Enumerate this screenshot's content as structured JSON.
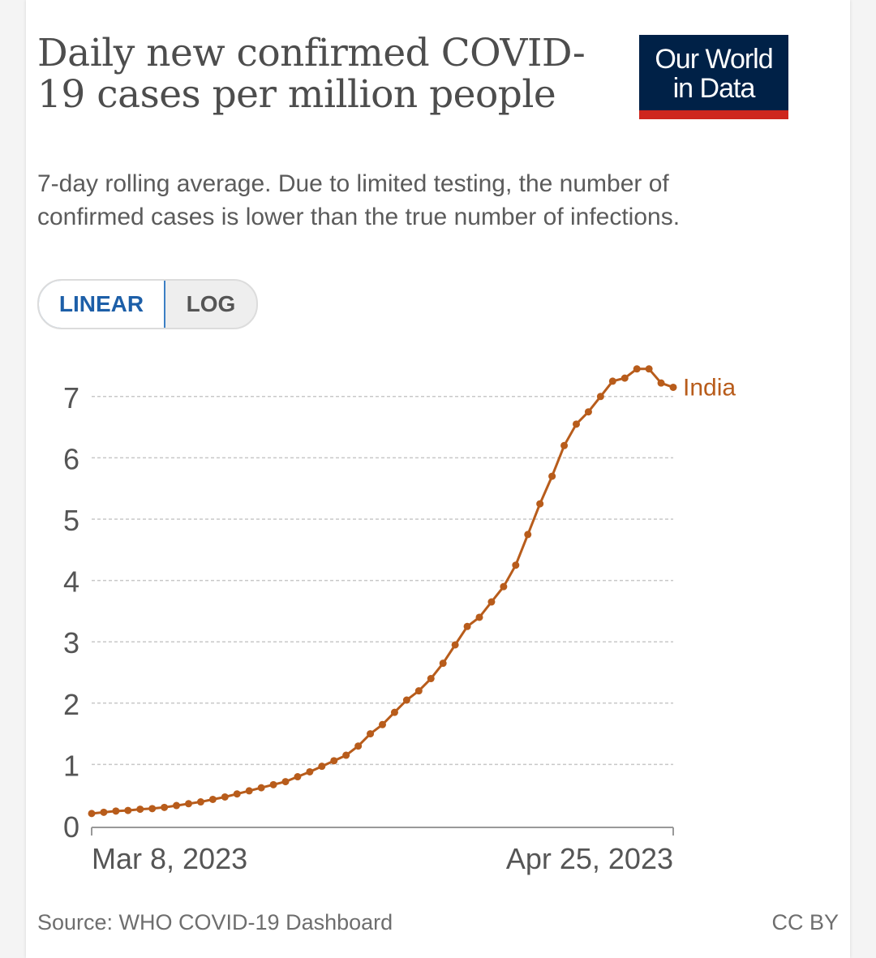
{
  "title": "Daily new confirmed COVID-19 cases per million people",
  "subtitle": "7-day rolling average. Due to limited testing, the number of confirmed cases is lower than the true number of infections.",
  "logo": {
    "line1": "Our World",
    "line2": "in Data",
    "bg": "#002147",
    "accent": "#ce261e"
  },
  "scale_toggle": {
    "linear_label": "LINEAR",
    "log_label": "LOG",
    "selected": "LINEAR"
  },
  "source": "Source: WHO COVID-19 Dashboard",
  "license": "CC BY",
  "chart_data": {
    "type": "line",
    "ylim": [
      0,
      7.5
    ],
    "yticks": [
      "0",
      "1",
      "2",
      "3",
      "4",
      "5",
      "6",
      "7"
    ],
    "xtick_labels": [
      "Mar 8, 2023",
      "Apr 25, 2023"
    ],
    "grid": true,
    "x_start": "2023-03-08",
    "x_end": "2023-04-25",
    "series": [
      {
        "name": "India",
        "color": "#b85c1b",
        "x": [
          "2023-03-08",
          "2023-03-09",
          "2023-03-10",
          "2023-03-11",
          "2023-03-12",
          "2023-03-13",
          "2023-03-14",
          "2023-03-15",
          "2023-03-16",
          "2023-03-17",
          "2023-03-18",
          "2023-03-19",
          "2023-03-20",
          "2023-03-21",
          "2023-03-22",
          "2023-03-23",
          "2023-03-24",
          "2023-03-25",
          "2023-03-26",
          "2023-03-27",
          "2023-03-28",
          "2023-03-29",
          "2023-03-30",
          "2023-03-31",
          "2023-04-01",
          "2023-04-02",
          "2023-04-03",
          "2023-04-04",
          "2023-04-05",
          "2023-04-06",
          "2023-04-07",
          "2023-04-08",
          "2023-04-09",
          "2023-04-10",
          "2023-04-11",
          "2023-04-12",
          "2023-04-13",
          "2023-04-14",
          "2023-04-15",
          "2023-04-16",
          "2023-04-17",
          "2023-04-18",
          "2023-04-19",
          "2023-04-20",
          "2023-04-21",
          "2023-04-22",
          "2023-04-23",
          "2023-04-24",
          "2023-04-25"
        ],
        "values": [
          0.2,
          0.22,
          0.24,
          0.25,
          0.27,
          0.28,
          0.3,
          0.33,
          0.36,
          0.39,
          0.43,
          0.47,
          0.52,
          0.57,
          0.62,
          0.67,
          0.72,
          0.8,
          0.88,
          0.97,
          1.06,
          1.15,
          1.3,
          1.5,
          1.65,
          1.85,
          2.05,
          2.2,
          2.4,
          2.65,
          2.95,
          3.25,
          3.4,
          3.65,
          3.9,
          4.25,
          4.75,
          5.25,
          5.7,
          6.2,
          6.55,
          6.75,
          7.0,
          7.25,
          7.3,
          7.45,
          7.45,
          7.22,
          7.15
        ]
      }
    ]
  }
}
